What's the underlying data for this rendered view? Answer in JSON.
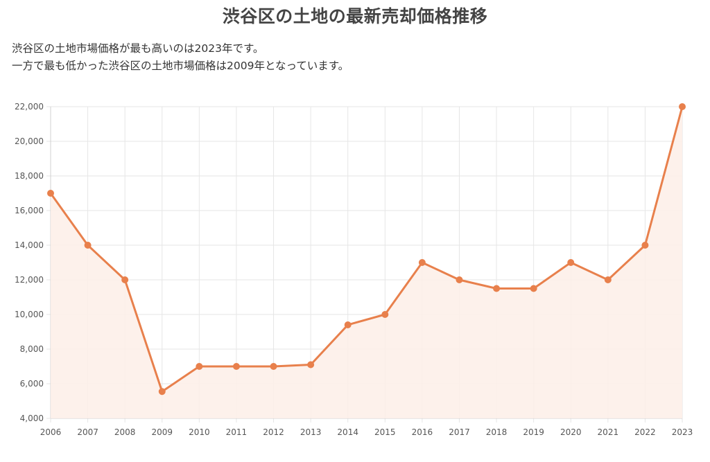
{
  "page": {
    "title": "渋谷区の土地の最新売却価格推移",
    "description_lines": [
      "渋谷区の土地市場価格が最も高いのは2023年です。",
      "一方で最も低かった渋谷区の土地市場価格は2009年となっています。"
    ]
  },
  "colors": {
    "line": "#e8804c",
    "fill": "#fdeee8",
    "grid": "#e6e6e6"
  },
  "chart_data": {
    "type": "area",
    "title": "",
    "xlabel": "",
    "ylabel": "",
    "categories": [
      "2006",
      "2007",
      "2008",
      "2009",
      "2010",
      "2011",
      "2012",
      "2013",
      "2014",
      "2015",
      "2016",
      "2017",
      "2018",
      "2019",
      "2020",
      "2021",
      "2022",
      "2023"
    ],
    "values": [
      17000,
      14000,
      12000,
      5550,
      7000,
      7000,
      7000,
      7100,
      9400,
      10000,
      13000,
      12000,
      11500,
      11500,
      13000,
      12000,
      14000,
      22000
    ],
    "ylim": [
      4000,
      22000
    ],
    "yticks": [
      4000,
      6000,
      8000,
      10000,
      12000,
      14000,
      16000,
      18000,
      20000,
      22000
    ],
    "ytick_labels": [
      "4,000",
      "6,000",
      "8,000",
      "10,000",
      "12,000",
      "14,000",
      "16,000",
      "18,000",
      "20,000",
      "22,000"
    ],
    "grid": true,
    "legend": "none"
  }
}
